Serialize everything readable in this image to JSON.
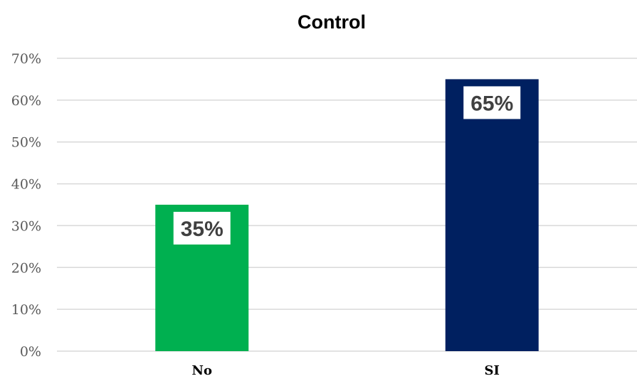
{
  "chart_data": {
    "type": "bar",
    "title": "Control",
    "categories": [
      "No",
      "SI"
    ],
    "values": [
      35,
      65
    ],
    "value_labels": [
      "35%",
      "65%"
    ],
    "colors": [
      "#00b050",
      "#002060"
    ],
    "ylim": [
      0,
      70
    ],
    "yticks": [
      0,
      10,
      20,
      30,
      40,
      50,
      60,
      70
    ],
    "ytick_labels": [
      "0%",
      "10%",
      "20%",
      "30%",
      "40%",
      "50%",
      "60%",
      "70%"
    ],
    "xlabel": "",
    "ylabel": "",
    "grid": true,
    "legend": "none"
  }
}
